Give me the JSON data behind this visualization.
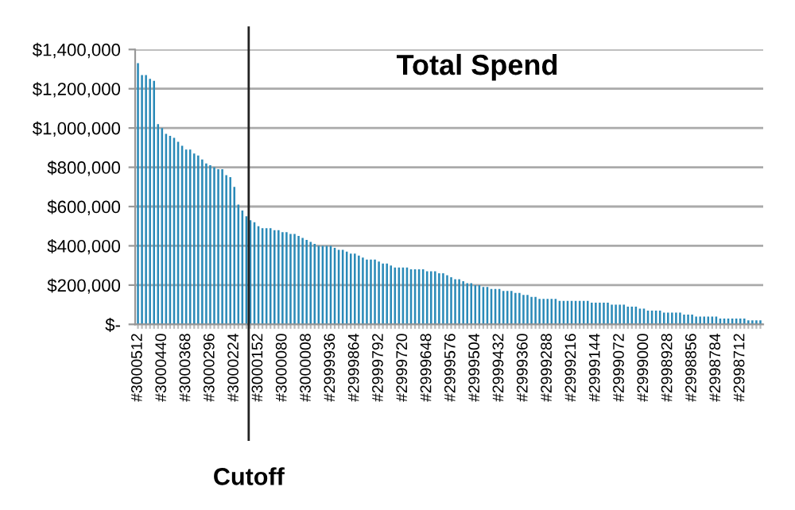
{
  "chart_data": {
    "type": "bar",
    "title": "Total Spend",
    "categories": [
      "#3000512",
      null,
      null,
      null,
      null,
      null,
      "#3000440",
      null,
      null,
      null,
      null,
      null,
      "#3000368",
      null,
      null,
      null,
      null,
      null,
      "#3000296",
      null,
      null,
      null,
      null,
      null,
      "#3000224",
      null,
      null,
      null,
      null,
      null,
      "#3000152",
      null,
      null,
      null,
      null,
      null,
      "#3000080",
      null,
      null,
      null,
      null,
      null,
      "#3000008",
      null,
      null,
      null,
      null,
      null,
      "#2999936",
      null,
      null,
      null,
      null,
      null,
      "#2999864",
      null,
      null,
      null,
      null,
      null,
      "#2999792",
      null,
      null,
      null,
      null,
      null,
      "#2999720",
      null,
      null,
      null,
      null,
      null,
      "#2999648",
      null,
      null,
      null,
      null,
      null,
      "#2999576",
      null,
      null,
      null,
      null,
      null,
      "#2999504",
      null,
      null,
      null,
      null,
      null,
      "#2999432",
      null,
      null,
      null,
      null,
      null,
      "#2999360",
      null,
      null,
      null,
      null,
      null,
      "#2999288",
      null,
      null,
      null,
      null,
      null,
      "#2999216",
      null,
      null,
      null,
      null,
      null,
      "#2999144",
      null,
      null,
      null,
      null,
      null,
      "#2999072",
      null,
      null,
      null,
      null,
      null,
      "#2999000",
      null,
      null,
      null,
      null,
      null,
      "#2998928",
      null,
      null,
      null,
      null,
      null,
      "#2998856",
      null,
      null,
      null,
      null,
      null,
      "#2998784",
      null,
      null,
      null,
      null,
      null,
      "#2998712",
      null,
      null,
      null,
      null,
      null
    ],
    "values": [
      1330000,
      1270000,
      1270000,
      1250000,
      1240000,
      1020000,
      1000000,
      970000,
      960000,
      950000,
      930000,
      910000,
      890000,
      890000,
      870000,
      860000,
      840000,
      820000,
      810000,
      800000,
      790000,
      790000,
      760000,
      750000,
      700000,
      610000,
      580000,
      550000,
      530000,
      520000,
      500000,
      490000,
      490000,
      490000,
      480000,
      480000,
      470000,
      470000,
      460000,
      460000,
      450000,
      440000,
      430000,
      420000,
      410000,
      400000,
      400000,
      400000,
      400000,
      390000,
      380000,
      380000,
      370000,
      360000,
      360000,
      350000,
      340000,
      330000,
      330000,
      330000,
      320000,
      310000,
      310000,
      300000,
      290000,
      290000,
      290000,
      290000,
      280000,
      280000,
      280000,
      280000,
      270000,
      270000,
      270000,
      260000,
      260000,
      250000,
      240000,
      230000,
      230000,
      220000,
      210000,
      210000,
      200000,
      200000,
      190000,
      190000,
      180000,
      180000,
      180000,
      170000,
      170000,
      170000,
      160000,
      160000,
      150000,
      150000,
      140000,
      140000,
      130000,
      130000,
      130000,
      130000,
      130000,
      120000,
      120000,
      120000,
      120000,
      120000,
      120000,
      120000,
      120000,
      110000,
      110000,
      110000,
      110000,
      110000,
      100000,
      100000,
      100000,
      100000,
      90000,
      90000,
      90000,
      80000,
      80000,
      70000,
      70000,
      70000,
      70000,
      60000,
      60000,
      60000,
      60000,
      60000,
      50000,
      50000,
      50000,
      40000,
      40000,
      40000,
      40000,
      40000,
      40000,
      30000,
      30000,
      30000,
      30000,
      30000,
      30000,
      30000,
      20000,
      20000,
      20000,
      20000
    ],
    "color": "#2a8ab8",
    "ylim": [
      0,
      1400000
    ],
    "yticks": [
      {
        "value": 0,
        "label": "$-"
      },
      {
        "value": 200000,
        "label": "$200,000"
      },
      {
        "value": 400000,
        "label": "$400,000"
      },
      {
        "value": 600000,
        "label": "$600,000"
      },
      {
        "value": 800000,
        "label": "$800,000"
      },
      {
        "value": 1000000,
        "label": "$1,000,000"
      },
      {
        "value": 1200000,
        "label": "$1,200,000"
      },
      {
        "value": 1400000,
        "label": "$1,400,000"
      }
    ],
    "grid": "y",
    "annotations": [
      "Cutoff"
    ]
  }
}
